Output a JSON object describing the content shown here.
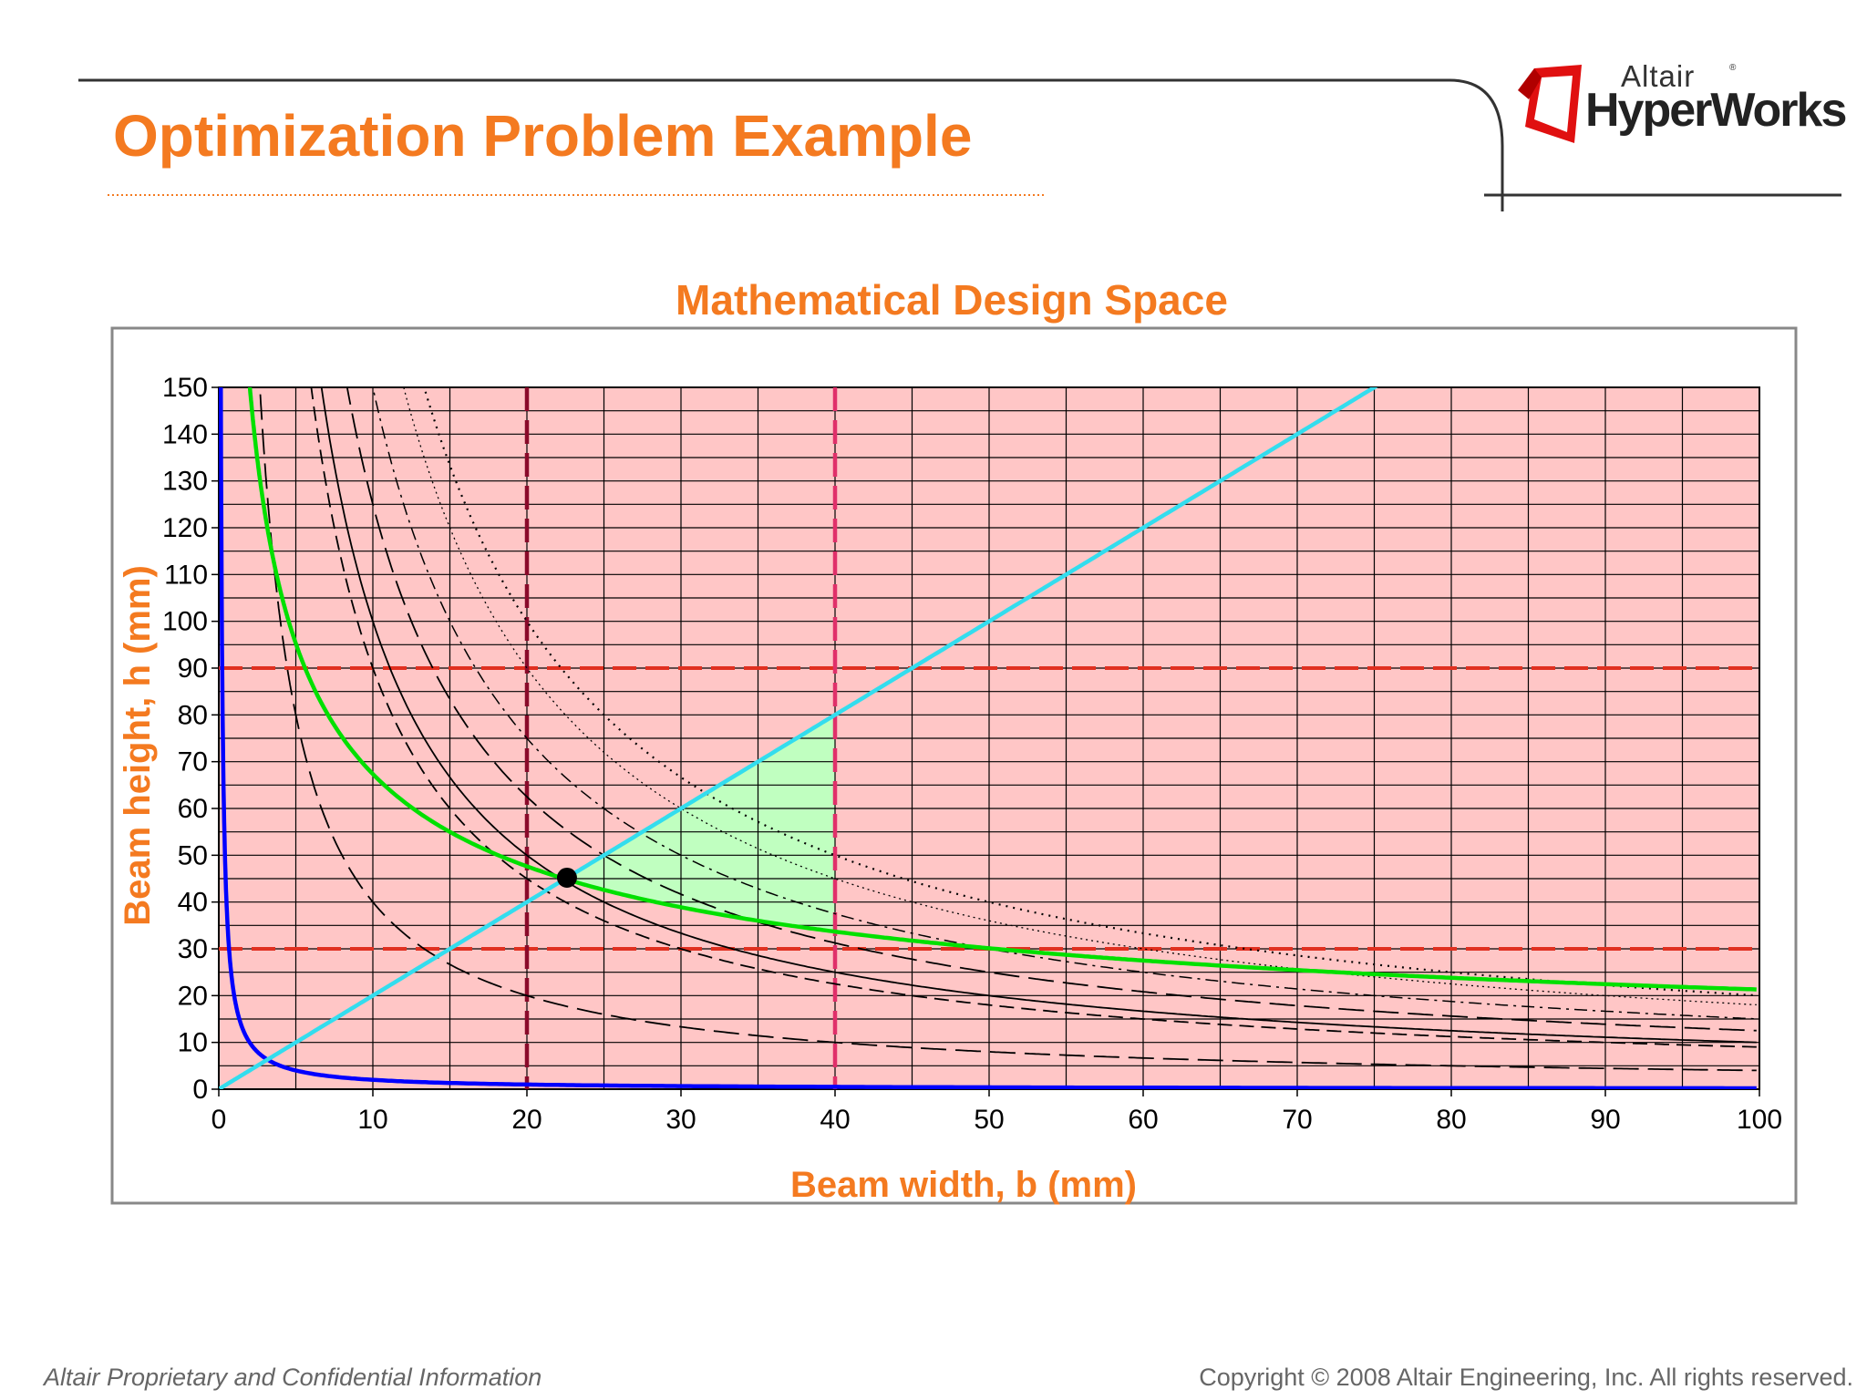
{
  "slide": {
    "title": "Optimization Problem Example",
    "footer_left": "Altair Proprietary and Confidential Information",
    "footer_right": "Copyright © 2008 Altair Engineering, Inc. All rights reserved."
  },
  "logo": {
    "line1": "Altair",
    "line2": "HyperWorks",
    "reg_mark": "®",
    "icon": "altair-logo-icon"
  },
  "colors": {
    "accent": "#f47a20",
    "infeasible_region": "#ffc6c6",
    "feasible_region": "#c0ffc0",
    "grid": "#000000",
    "objective_curve": "#00e000",
    "blue_curve": "#0000ff",
    "cyan_line": "#33ddee",
    "height_limits": "#e03020",
    "width_limit_low": "#8a0a2a",
    "width_limit_high": "#e0306a"
  },
  "chart_data": {
    "type": "line",
    "title": "Mathematical Design Space",
    "xlabel": "Beam width, b (mm)",
    "ylabel": "Beam height, h (mm)",
    "xlim": [
      0,
      100
    ],
    "ylim": [
      0,
      150
    ],
    "x_ticks": [
      0,
      10,
      20,
      30,
      40,
      50,
      60,
      70,
      80,
      90,
      100
    ],
    "y_ticks": [
      0,
      10,
      20,
      30,
      40,
      50,
      60,
      70,
      80,
      90,
      100,
      110,
      120,
      130,
      140,
      150
    ],
    "grid": true,
    "legend": "none",
    "background_region": "infeasible",
    "series": [
      {
        "kind": "hyperbola",
        "const": 900,
        "style": "dashed",
        "color": "#000000",
        "width": 1.8
      },
      {
        "kind": "hyperbola",
        "const": 400,
        "style": "long-dashed",
        "color": "#000000",
        "width": 1.8
      },
      {
        "kind": "hyperbola",
        "const": 2000,
        "style": "dotted",
        "color": "#000000",
        "width": 2.2
      },
      {
        "kind": "hyperbola",
        "const": 1000,
        "style": "solid",
        "color": "#000000",
        "width": 1.8
      },
      {
        "kind": "hyperbola",
        "const": 1250,
        "style": "long-dashed",
        "color": "#000000",
        "width": 1.8
      },
      {
        "kind": "hyperbola",
        "const": 1500,
        "style": "dash-dot",
        "color": "#000000",
        "width": 1.5
      },
      {
        "kind": "hyperbola",
        "const": 1800,
        "style": "fine-dotted",
        "color": "#000000",
        "width": 1.3
      },
      {
        "kind": "sqrt-hyperbola",
        "const": 213,
        "style": "solid",
        "color": "#00e000",
        "width": 4.5
      },
      {
        "kind": "hyperbola",
        "const": 20,
        "style": "solid",
        "color": "#0000ff",
        "width": 4.5
      },
      {
        "kind": "line",
        "slope": 2,
        "style": "solid",
        "color": "#33ddee",
        "width": 4.5
      }
    ],
    "constraints": [
      {
        "axis": "y",
        "value": 90,
        "color": "#e03020"
      },
      {
        "axis": "y",
        "value": 30,
        "color": "#e03020"
      },
      {
        "axis": "x",
        "value": 20,
        "color": "#8a0a2a"
      },
      {
        "axis": "x",
        "value": 40,
        "color": "#e0306a"
      }
    ],
    "feasible_region": {
      "vertices": [
        [
          22.6,
          45.2
        ],
        [
          25,
          50
        ],
        [
          30,
          60
        ],
        [
          35,
          70
        ],
        [
          40,
          80
        ],
        [
          40,
          33.7
        ],
        [
          35,
          36.0
        ],
        [
          30,
          38.9
        ],
        [
          25,
          42.6
        ]
      ]
    },
    "optimum": {
      "x": 22.6,
      "y": 45.2
    }
  }
}
